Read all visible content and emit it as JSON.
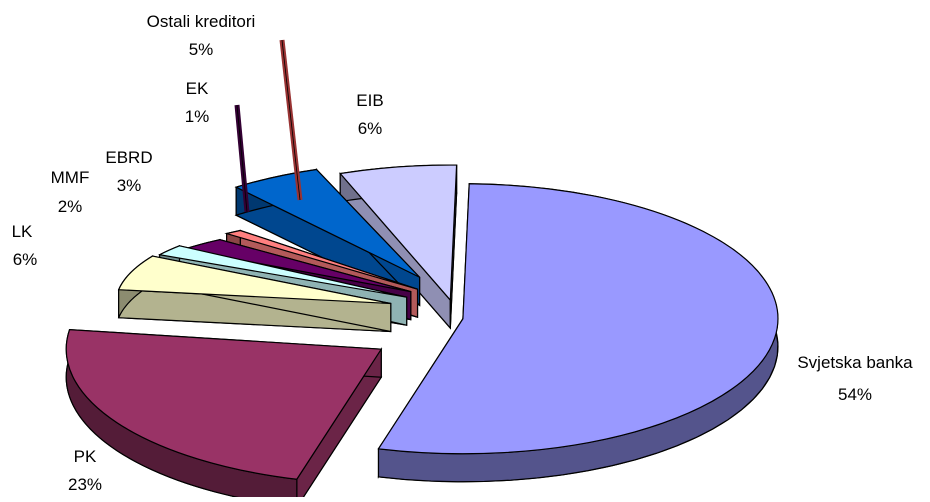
{
  "chart_data": {
    "type": "pie",
    "title": "",
    "three_d": true,
    "exploded": true,
    "legend": "none",
    "slices": [
      {
        "label": "Svjetska banka",
        "percent_label": "54%",
        "value": 54,
        "color": "#9999ff"
      },
      {
        "label": "PK",
        "percent_label": "23%",
        "value": 23,
        "color": "#993366"
      },
      {
        "label": "LK",
        "percent_label": "6%",
        "value": 6,
        "color": "#ffffcc"
      },
      {
        "label": "MMF",
        "percent_label": "2%",
        "value": 2,
        "color": "#ccffff"
      },
      {
        "label": "EBRD",
        "percent_label": "3%",
        "value": 3,
        "color": "#660066"
      },
      {
        "label": "EK",
        "percent_label": "1%",
        "value": 1,
        "color": "#ff8080"
      },
      {
        "label": "Ostali kreditori",
        "percent_label": "5%",
        "value": 5,
        "color": "#0066cc"
      },
      {
        "label": "EIB",
        "percent_label": "6%",
        "value": 6,
        "color": "#ccccff"
      }
    ]
  }
}
